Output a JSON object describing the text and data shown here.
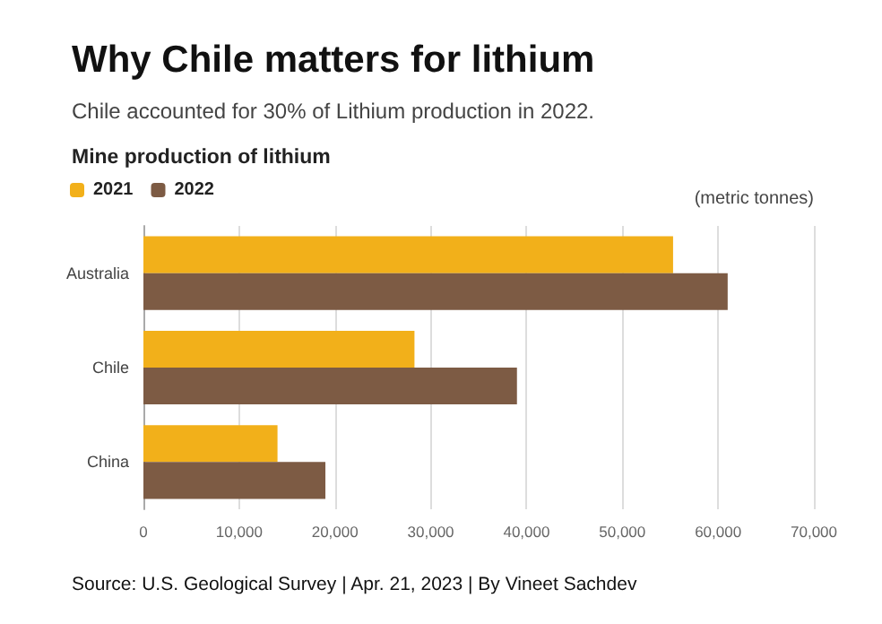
{
  "chart_data": {
    "type": "bar",
    "orientation": "horizontal",
    "title": "Why Chile matters for lithium",
    "subtitle": "Chile accounted for 30% of Lithium production in 2022.",
    "xlabel": "(metric tonnes)",
    "annotations": [
      "Mine production of lithium",
      "Source: U.S. Geological Survey | Apr. 21, 2023 | By Vineet Sachdev"
    ],
    "categories": [
      "Australia",
      "Chile",
      "China"
    ],
    "series": [
      {
        "name": "2021",
        "color": "#f2b01a",
        "values": [
          55300,
          28300,
          14000
        ]
      },
      {
        "name": "2022",
        "color": "#7d5b44",
        "values": [
          61000,
          39000,
          19000
        ]
      }
    ],
    "xlim": [
      0,
      70000
    ],
    "xticks": [
      0,
      {
        "value": 10000,
        "label": "10,000"
      },
      {
        "value": 20000,
        "label": "20,000"
      },
      {
        "value": 30000,
        "label": "30,000"
      },
      {
        "value": 40000,
        "label": "40,000"
      },
      {
        "value": 50000,
        "label": "50,000"
      },
      {
        "value": 60000,
        "label": "60,000"
      },
      {
        "value": 70000,
        "label": "70,000"
      }
    ],
    "grid": "x",
    "legend": "top left"
  }
}
